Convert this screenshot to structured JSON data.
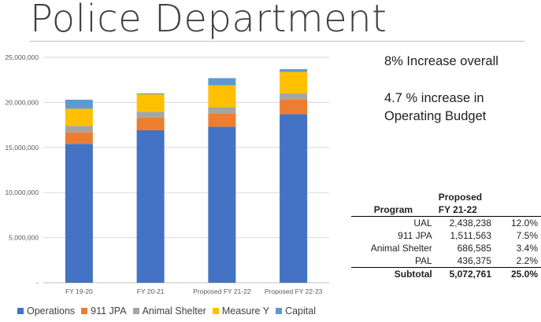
{
  "page": {
    "title": "Police Department",
    "note1": "8% Increase overall",
    "note2": "4.7 % increase in Operating Budget"
  },
  "chart_data": {
    "type": "bar",
    "stacked": true,
    "categories": [
      "FY 19-20",
      "FY 20-21",
      "Proposed  FY 21-22",
      "Proposed  FY 22-23"
    ],
    "series": [
      {
        "name": "Operations",
        "color": "#4472C4",
        "values": [
          15400000,
          16900000,
          17300000,
          18700000
        ]
      },
      {
        "name": "911 JPA",
        "color": "#ED7D31",
        "values": [
          1300000,
          1400000,
          1500000,
          1600000
        ]
      },
      {
        "name": "Animal Shelter",
        "color": "#A5A5A5",
        "values": [
          700000,
          650000,
          690000,
          690000
        ]
      },
      {
        "name": "Measure Y",
        "color": "#FFC000",
        "values": [
          1900000,
          1950000,
          2400000,
          2400000
        ]
      },
      {
        "name": "Capital",
        "color": "#5B9BD5",
        "values": [
          1000000,
          100000,
          800000,
          300000
        ]
      }
    ],
    "ylim": [
      0,
      25000000
    ],
    "yticks": [
      "-",
      "5,000,000",
      "10,000,000",
      "15,000,000",
      "20,000,000",
      "25,000,000"
    ],
    "grid": true,
    "legend": "bottom"
  },
  "table": {
    "header_program": "Program",
    "header_proposed_line1": "Proposed",
    "header_proposed_line2": "FY 21-22",
    "rows": [
      {
        "program": "UAL",
        "value": "2,438,238",
        "pct": "12.0%"
      },
      {
        "program": "911 JPA",
        "value": "1,511,563",
        "pct": "7.5%"
      },
      {
        "program": "Animal Shelter",
        "value": "686,585",
        "pct": "3.4%"
      },
      {
        "program": "PAL",
        "value": "436,375",
        "pct": "2.2%"
      }
    ],
    "subtotal": {
      "program": "Subtotal",
      "value": "5,072,761",
      "pct": "25.0%"
    }
  }
}
